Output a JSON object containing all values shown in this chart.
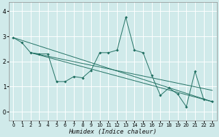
{
  "xlabel": "Humidex (Indice chaleur)",
  "background_color": "#d0eaea",
  "grid_color": "#ffffff",
  "line_color": "#1e6e60",
  "xlim": [
    -0.5,
    23.5
  ],
  "ylim": [
    -0.35,
    4.35
  ],
  "xticks": [
    0,
    1,
    2,
    3,
    4,
    5,
    6,
    7,
    8,
    9,
    10,
    11,
    12,
    13,
    14,
    15,
    16,
    17,
    18,
    19,
    20,
    21,
    22,
    23
  ],
  "yticks": [
    0,
    1,
    2,
    3,
    4
  ],
  "zigzag": {
    "x": [
      0,
      1,
      2,
      3,
      4,
      5,
      6,
      7,
      8,
      9,
      10,
      11,
      12,
      13,
      14,
      15,
      16,
      17,
      18,
      19,
      20,
      21,
      22,
      23
    ],
    "y": [
      2.95,
      2.75,
      2.35,
      2.3,
      2.3,
      1.2,
      1.2,
      1.4,
      1.35,
      1.65,
      2.35,
      2.35,
      2.45,
      3.75,
      2.45,
      2.35,
      1.45,
      0.65,
      0.95,
      0.7,
      0.2,
      1.6,
      0.5,
      0.4
    ]
  },
  "line1": {
    "x": [
      0,
      23
    ],
    "y": [
      2.95,
      0.4
    ]
  },
  "line2": {
    "x": [
      2,
      23
    ],
    "y": [
      2.35,
      0.85
    ]
  },
  "line3": {
    "x": [
      2,
      23
    ],
    "y": [
      2.35,
      0.4
    ]
  }
}
